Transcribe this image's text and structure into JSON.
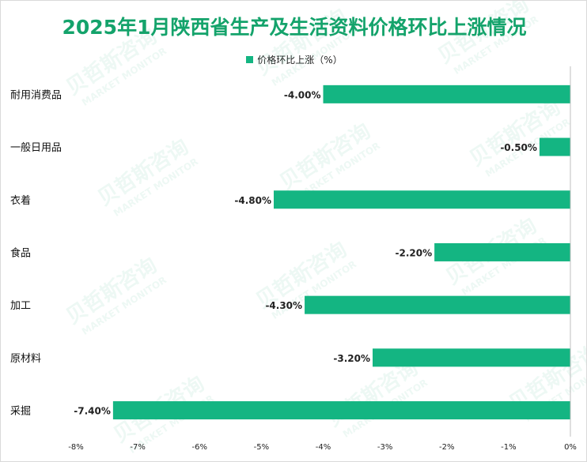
{
  "title": "2025年1月陕西省生产及生活资料价格环比上涨情况",
  "legend": {
    "label": "价格环比上涨（%）"
  },
  "watermark": {
    "cn": "贝哲斯咨询",
    "en": "MARKET MONITOR"
  },
  "colors": {
    "bar": "#14b582",
    "title": "#14a36b"
  },
  "chart_data": {
    "type": "bar",
    "orientation": "horizontal",
    "categories": [
      "耐用消费品",
      "一般日用品",
      "衣着",
      "食品",
      "加工",
      "原材料",
      "采掘"
    ],
    "series": [
      {
        "name": "价格环比上涨（%）",
        "values": [
          -4.0,
          -0.5,
          -4.8,
          -2.2,
          -4.3,
          -3.2,
          -7.4
        ]
      }
    ],
    "data_labels": [
      "-4.00%",
      "-0.50%",
      "-4.80%",
      "-2.20%",
      "-4.30%",
      "-3.20%",
      "-7.40%"
    ],
    "x_ticks": [
      -8,
      -7,
      -6,
      -5,
      -4,
      -3,
      -2,
      -1,
      0
    ],
    "x_tick_labels": [
      "-8%",
      "-7%",
      "-6%",
      "-5%",
      "-4%",
      "-3%",
      "-2%",
      "-1%",
      "0%"
    ],
    "xlim": [
      -8,
      0
    ],
    "grid": false,
    "legend_position": "top"
  }
}
